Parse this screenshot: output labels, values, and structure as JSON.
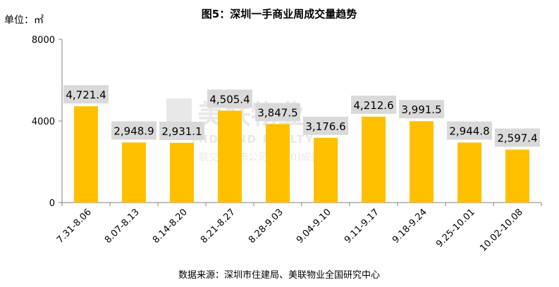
{
  "chart_data": {
    "type": "bar",
    "title": "图5：深圳一手商业周成交量趋势",
    "unit_label": "单位：㎡",
    "categories": [
      "7.31-8.06",
      "8.07-8.13",
      "8.14-8.20",
      "8.21-8.27",
      "8.28-9.03",
      "9.04-9.10",
      "9.11-9.17",
      "9.18-9.24",
      "9.25-10.01",
      "10.02-10.08"
    ],
    "values": [
      4721.4,
      2948.9,
      2931.1,
      4505.4,
      3847.5,
      3176.6,
      4212.6,
      3991.5,
      2944.8,
      2597.4
    ],
    "data_labels": [
      "4,721.4",
      "2,948.9",
      "2,931.1",
      "4,505.4",
      "3,847.5",
      "3,176.6",
      "4,212.6",
      "3,991.5",
      "2,944.8",
      "2,597.4"
    ],
    "yticks": [
      "0",
      "4000",
      "8000"
    ],
    "ylim": [
      0,
      8000
    ],
    "grid": false,
    "bar_color": "#FFC000",
    "label_bg_color": "#D9D9D9",
    "source": "数据来源：深圳市住建局、美联物业全国研究中心"
  },
  "watermark": {
    "line1": "美联物业",
    "line2": "MIDLAND REALTY",
    "line3": "联交所上市公司(1200)成员"
  }
}
